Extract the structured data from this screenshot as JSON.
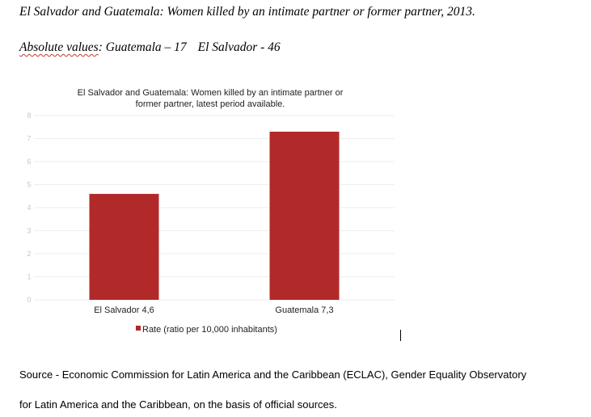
{
  "document": {
    "title": "El Salvador and Guatemala: Women killed by an intimate partner or former partner, 2013.",
    "absolute_label": "Absolute values",
    "absolute_text_1": ": Guatemala – 17",
    "absolute_text_2": "El Salvador - 46",
    "source_line_1": "Source - Economic Commission for Latin America and the Caribbean (ECLAC), Gender Equality Observatory",
    "source_line_2": "for Latin America and the Caribbean, on the basis of official sources."
  },
  "chart_data": {
    "type": "bar",
    "title_lines": [
      "El Salvador and Guatemala: Women killed by an intimate partner or",
      "former partner, latest period available."
    ],
    "categories": [
      "El Salvador 4,6",
      "Guatemala 7,3"
    ],
    "series": [
      {
        "name": "Rate (ratio per 10,000 inhabitants)",
        "values": [
          4.6,
          7.3
        ],
        "color": "#b22929"
      }
    ],
    "ylim": [
      0,
      8
    ],
    "yticks": [
      "0",
      "1",
      "2",
      "3",
      "4",
      "5",
      "6",
      "7",
      "8"
    ],
    "grid": true,
    "legend_position": "bottom",
    "colors": {
      "bar": "#b22929",
      "tick_label": "#c8c8c8",
      "grid": "#eeeeee"
    }
  }
}
